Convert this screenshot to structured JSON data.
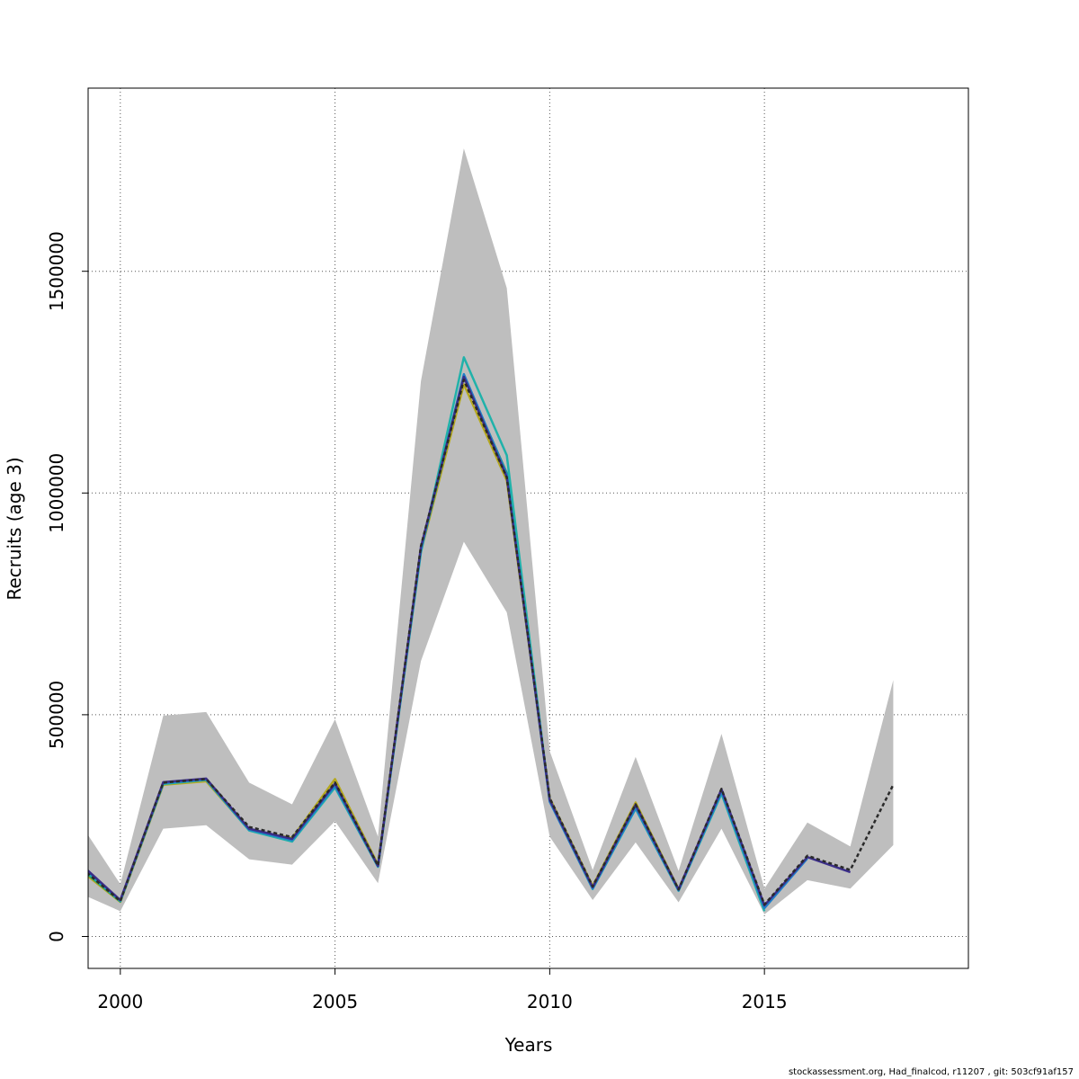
{
  "chart_data": {
    "type": "line",
    "title": "",
    "xlabel": "Years",
    "ylabel": "Recruits (age 3)",
    "xlim": [
      1999.25,
      2019.75
    ],
    "ylim": [
      -72000,
      1913000
    ],
    "grid": true,
    "x_ticks": [
      2000,
      2005,
      2010,
      2015
    ],
    "y_ticks": [
      0,
      500000,
      1000000,
      1500000
    ],
    "x_tick_labels": [
      "2000",
      "2005",
      "2010",
      "2015"
    ],
    "y_tick_labels": [
      "0",
      "500000",
      "1000000",
      "1500000"
    ],
    "confidence_band": {
      "x": [
        1999,
        2000,
        2001,
        2002,
        2003,
        2004,
        2005,
        2006,
        2007,
        2008,
        2009,
        2010,
        2011,
        2012,
        2013,
        2014,
        2015,
        2016,
        2017,
        2018
      ],
      "upper": [
        265000,
        118000,
        498000,
        506000,
        347000,
        298000,
        490000,
        225000,
        1252000,
        1777000,
        1462000,
        418000,
        150000,
        405000,
        148000,
        457000,
        108000,
        257000,
        203000,
        578000
      ],
      "lower": [
        100000,
        57000,
        243000,
        251000,
        174000,
        162000,
        260000,
        120000,
        621000,
        890000,
        731000,
        225000,
        82000,
        212000,
        77000,
        243000,
        50000,
        127000,
        108000,
        206000
      ]
    },
    "series": [
      {
        "color": "#2a2a2a",
        "dash": "4,3",
        "x": [
          1999,
          2000,
          2001,
          2002,
          2003,
          2004,
          2005,
          2006,
          2007,
          2008,
          2009,
          2010,
          2011,
          2012,
          2013,
          2014,
          2015,
          2016,
          2017,
          2018
        ],
        "values": [
          162000,
          80000,
          347000,
          355000,
          247000,
          224000,
          347000,
          160000,
          880000,
          1255000,
          1035000,
          312000,
          113000,
          298000,
          106000,
          333000,
          72000,
          182000,
          150000,
          342000
        ]
      },
      {
        "color": "#3b2e8a",
        "x": [
          1999,
          2000,
          2001,
          2002,
          2003,
          2004,
          2005,
          2006,
          2007,
          2008,
          2009,
          2010,
          2011,
          2012,
          2013,
          2014,
          2015,
          2016,
          2017
        ],
        "values": [
          170000,
          82000,
          348000,
          356000,
          243000,
          220000,
          345000,
          159000,
          878000,
          1262000,
          1036000,
          308000,
          111000,
          297000,
          106000,
          332000,
          70000,
          179000,
          145000
        ]
      },
      {
        "color": "#1f7fc8",
        "x": [
          1999,
          2000,
          2001,
          2002,
          2003,
          2004,
          2005,
          2006,
          2007,
          2008,
          2009,
          2010,
          2011,
          2012,
          2013,
          2014,
          2015,
          2016
        ],
        "values": [
          168000,
          81000,
          346000,
          354000,
          241000,
          217000,
          340000,
          158000,
          872000,
          1268000,
          1042000,
          304000,
          108000,
          290000,
          104000,
          326000,
          64000,
          176000
        ]
      },
      {
        "color": "#20b2aa",
        "x": [
          1999,
          2000,
          2001,
          2002,
          2003,
          2004,
          2005,
          2006,
          2007,
          2008,
          2009,
          2010,
          2011,
          2012,
          2013,
          2014,
          2015
        ],
        "values": [
          163000,
          80000,
          344000,
          353000,
          239000,
          214000,
          336000,
          157000,
          866000,
          1306000,
          1085000,
          305000,
          107000,
          288000,
          103000,
          322000,
          57000
        ]
      },
      {
        "color": "#1aa06a",
        "x": [
          1999,
          2000,
          2001,
          2002,
          2003,
          2004,
          2005,
          2006,
          2007,
          2008,
          2009,
          2010,
          2011,
          2012,
          2013,
          2014
        ],
        "values": [
          160000,
          79000,
          345000,
          354000,
          242000,
          220000,
          344000,
          159000,
          871000,
          1264000,
          1045000,
          308000,
          110000,
          296000,
          105000,
          330000
        ]
      },
      {
        "color": "#b5a81e",
        "x": [
          1999,
          2000,
          2001,
          2002,
          2003,
          2004,
          2005,
          2006,
          2007,
          2008,
          2009,
          2010,
          2011,
          2012,
          2013
        ],
        "values": [
          155000,
          78000,
          342000,
          350000,
          240000,
          222000,
          355000,
          162000,
          868000,
          1245000,
          1028000,
          312000,
          114000,
          302000,
          107000
        ]
      }
    ]
  },
  "footer": "stockassessment.org, Had_finalcod, r11207 , git: 503cf91af157"
}
